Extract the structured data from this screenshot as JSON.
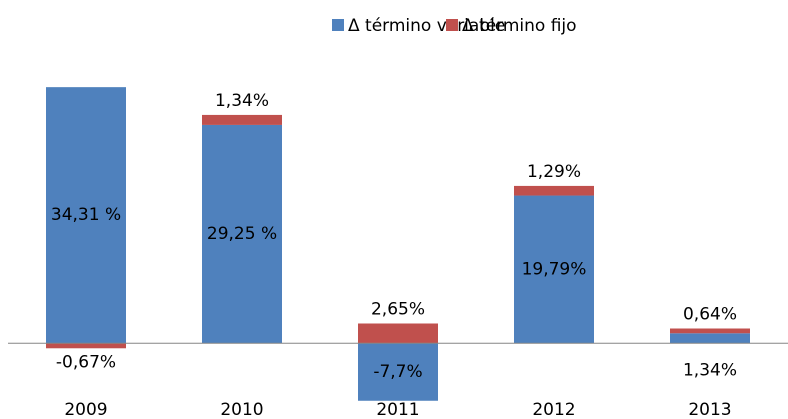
{
  "chart_data": {
    "type": "stacked_bar",
    "categories": [
      "2009",
      "2010",
      "2011",
      "2012",
      "2013"
    ],
    "series": [
      {
        "name": "Δ término variable",
        "color": "#4f81bd",
        "values": [
          34.31,
          29.25,
          -7.7,
          19.79,
          1.34
        ],
        "value_labels": [
          "34,31 %",
          "29,25 %",
          "-7,7%",
          "19,79%",
          "1,34%"
        ]
      },
      {
        "name": "Δ término fijo",
        "color": "#c0504d",
        "values": [
          -0.67,
          1.34,
          2.65,
          1.29,
          0.64
        ],
        "value_labels": [
          "-0,67%",
          "1,34%",
          "2,65%",
          "1,29%",
          "0,64%"
        ]
      }
    ],
    "ylim": [
      -8,
      35
    ],
    "legend": "top"
  }
}
